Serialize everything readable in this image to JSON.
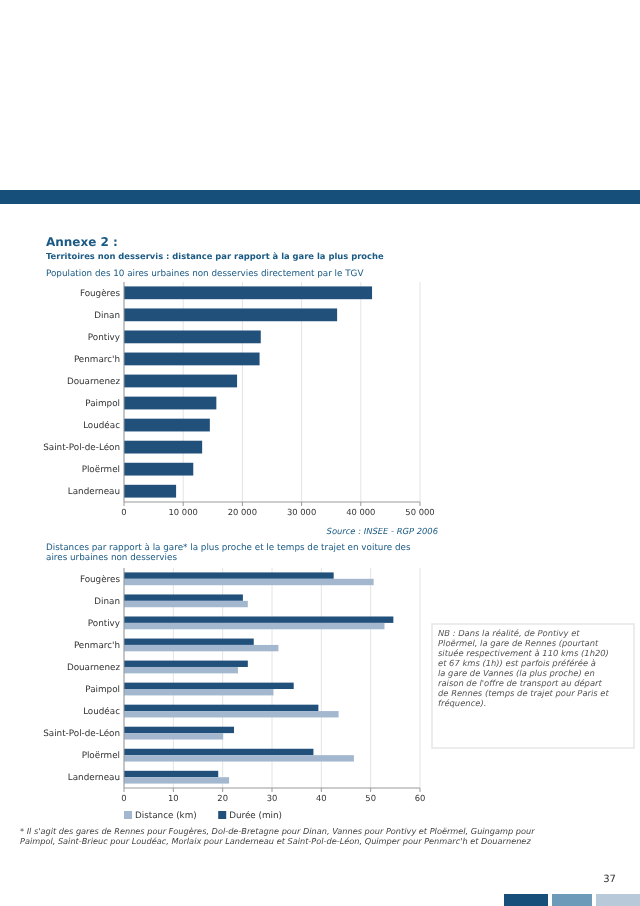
{
  "chart_data": [
    {
      "type": "bar",
      "orientation": "horizontal",
      "title": "Annexe 2 :",
      "subtitle": "Territoires non desservis : distance par rapport à la gare la plus proche",
      "categories": [
        "Fougères",
        "Dinan",
        "Pontivy",
        "Penmarc'h",
        "Douarnenez",
        "Paimpol",
        "Loudéac",
        "Saint-Pol-de-Léon",
        "Ploërmel",
        "Landerneau"
      ],
      "values": [
        41900,
        36000,
        23100,
        22900,
        19100,
        15600,
        14500,
        13200,
        11700,
        8800
      ],
      "color": "#21507a",
      "xlim": [
        0,
        50000
      ],
      "xticks": [
        0,
        {
          "value": 10000,
          "label": "10 000"
        },
        {
          "value": 20000,
          "label": "20 000"
        },
        {
          "value": 30000,
          "label": "30 000"
        },
        {
          "value": 40000,
          "label": "40 000"
        },
        {
          "value": 50000,
          "label": "50 000"
        }
      ],
      "grid": "x",
      "annotations": [
        "Population des 10 aires urbaines non desservies directement par le TGV",
        "Source : INSEE - RGP 2006"
      ]
    },
    {
      "type": "bar",
      "orientation": "horizontal",
      "title": "Distances par rapport à la gare* la plus proche et le temps de trajet en voiture des aires urbaines non desservies",
      "categories": [
        "Fougères",
        "Dinan",
        "Pontivy",
        "Penmarc'h",
        "Douarnenez",
        "Paimpol",
        "Loudéac",
        "Saint-Pol-de-Léon",
        "Ploërmel",
        "Landerneau"
      ],
      "series": [
        {
          "name": "Durée (min)",
          "color": "#21507a",
          "values": [
            42.5,
            24.1,
            54.6,
            26.3,
            25.1,
            34.4,
            39.4,
            22.3,
            38.4,
            19.1
          ]
        },
        {
          "name": "Distance (km)",
          "color": "#a3b8cf",
          "values": [
            50.6,
            25.1,
            52.8,
            31.3,
            23.1,
            30.3,
            43.5,
            20.1,
            46.6,
            21.3
          ]
        }
      ],
      "xlim": [
        0,
        60
      ],
      "xticks": [
        0,
        10,
        20,
        30,
        40,
        50,
        60
      ],
      "grid": "x",
      "legend": "bottom",
      "annotations": [
        "NB : Dans la réalité, de Pontivy et Ploërmel, la gare de Rennes (pourtant située respectivement à 110 kms (1h20) et 67 kms (1h)) est parfois préférée à la gare de Vannes (la plus proche) en raison de l'offre de transport au départ de Rennes (temps de trajet pour Paris et fréquence).",
        "* Il s'agit des gares de Rennes pour Fougères, Dol-de-Bretagne pour Dinan, Vannes pour Pontivy et Ploërmel, Guingamp pour Paimpol, Saint-Brieuc pour Loudéac, Morlaix pour Landerneau et Saint-Pol-de-Léon, Quimper pour Penmarc'h et Douarnenez",
        "37"
      ]
    }
  ]
}
